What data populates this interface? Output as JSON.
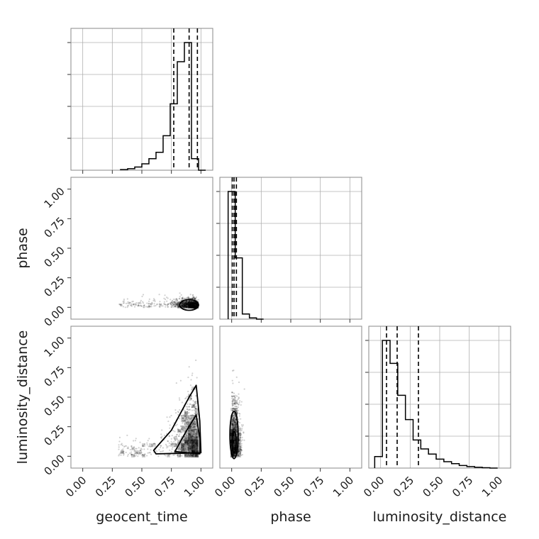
{
  "chart_data": {
    "type": "corner",
    "parameters": [
      "geocent_time",
      "phase",
      "luminosity_distance"
    ],
    "axis_labels": {
      "x": [
        "geocent_time",
        "phase",
        "luminosity_distance"
      ],
      "y": [
        "phase",
        "luminosity_distance"
      ]
    },
    "range": [
      -0.1,
      1.1
    ],
    "tick_values": [
      0.0,
      0.25,
      0.5,
      0.75,
      1.0
    ],
    "tick_labels": [
      "0.00",
      "0.25",
      "0.50",
      "0.75",
      "1.00"
    ],
    "grid": true,
    "histograms": [
      {
        "parameter": "geocent_time",
        "bin_edges": [
          0.32,
          0.38,
          0.44,
          0.5,
          0.56,
          0.62,
          0.68,
          0.74,
          0.8,
          0.86,
          0.92,
          0.98,
          1.04
        ],
        "counts": [
          0.005,
          0.012,
          0.025,
          0.05,
          0.09,
          0.14,
          0.27,
          0.52,
          0.85,
          1.0,
          0.09,
          0.0
        ],
        "quantiles": [
          0.77,
          0.9,
          0.97
        ]
      },
      {
        "parameter": "phase",
        "bin_edges": [
          -0.03,
          0.03,
          0.09,
          0.15,
          0.21,
          0.27
        ],
        "counts": [
          1.0,
          0.48,
          0.04,
          0.01,
          0.0
        ],
        "quantiles": [
          0.005,
          0.02,
          0.04
        ]
      },
      {
        "parameter": "luminosity_distance",
        "bin_edges": [
          -0.05,
          0.015,
          0.08,
          0.145,
          0.21,
          0.275,
          0.34,
          0.405,
          0.47,
          0.535,
          0.6,
          0.665,
          0.73,
          0.795,
          0.86,
          0.925,
          0.99
        ],
        "counts": [
          0.09,
          1.0,
          0.82,
          0.57,
          0.38,
          0.22,
          0.15,
          0.11,
          0.07,
          0.05,
          0.035,
          0.02,
          0.012,
          0.006,
          0.003,
          0.0
        ],
        "quantiles": [
          0.05,
          0.14,
          0.32
        ]
      }
    ],
    "pairs": [
      {
        "x": "geocent_time",
        "y": "phase"
      },
      {
        "x": "geocent_time",
        "y": "luminosity_distance"
      },
      {
        "x": "phase",
        "y": "luminosity_distance"
      }
    ]
  },
  "colors": {
    "line": "#000000",
    "grid": "#b0b0b0",
    "spine": "#888888",
    "point": "#000000"
  }
}
